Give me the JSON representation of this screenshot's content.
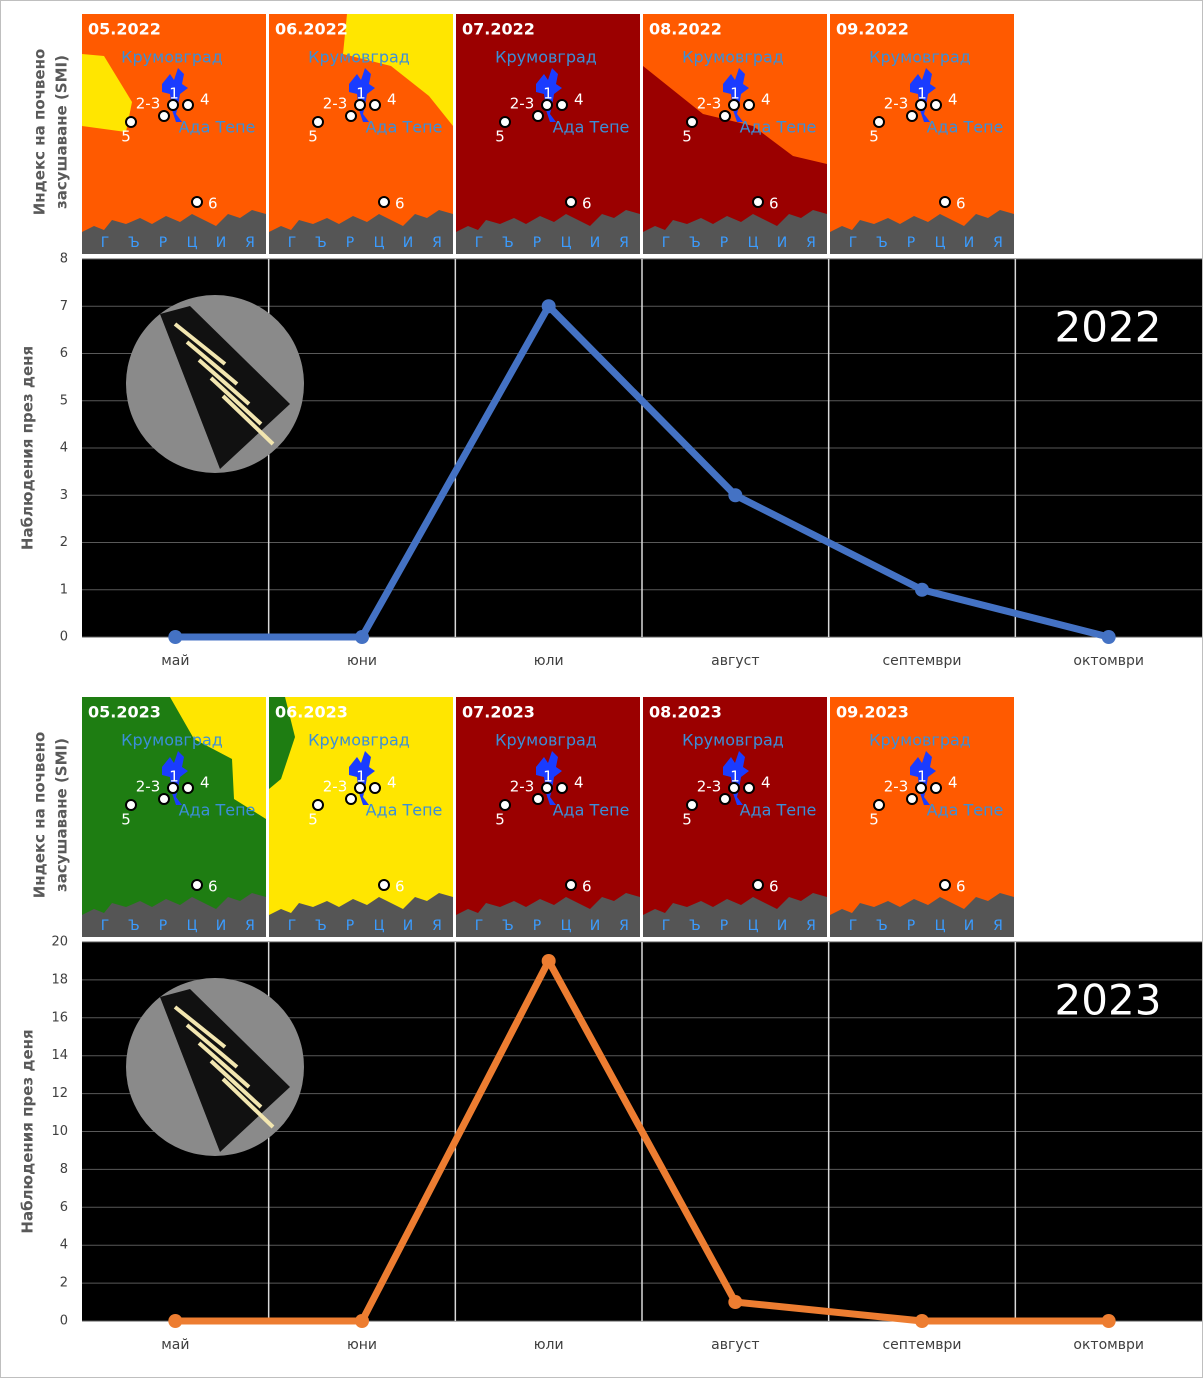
{
  "map_axis_label": [
    "Индекс на почвено",
    "засушаване (SMI)"
  ],
  "map_labels": {
    "towns": [
      "Крумовград",
      "Ада Тепе"
    ],
    "sites": [
      "1",
      "2-3",
      "4",
      "5",
      "6"
    ],
    "scale": [
      "Г",
      "Ъ",
      "Р",
      "Ц",
      "И",
      "Я"
    ]
  },
  "chart_data": [
    {
      "type": "line",
      "annotation": "2022",
      "y_label": "Наблюдения през деня",
      "categories": [
        "май",
        "юни",
        "юли",
        "август",
        "септември",
        "октомври"
      ],
      "series": [
        {
          "color": "#4472c4",
          "values": [
            0,
            0,
            7,
            3,
            1,
            0
          ]
        }
      ],
      "ylim": [
        0,
        8
      ],
      "yticks": [
        0,
        1,
        2,
        3,
        4,
        5,
        6,
        7,
        8
      ],
      "grid": true,
      "maps": [
        {
          "label": "05.2022",
          "colors": [
            "#ff5a00",
            "#ffe600"
          ]
        },
        {
          "label": "06.2022",
          "colors": [
            "#ff5a00",
            "#ffe600"
          ]
        },
        {
          "label": "07.2022",
          "colors": [
            "#9b0000"
          ]
        },
        {
          "label": "08.2022",
          "colors": [
            "#9b0000",
            "#ff5a00"
          ]
        },
        {
          "label": "09.2022",
          "colors": [
            "#ff5a00"
          ]
        }
      ]
    },
    {
      "type": "line",
      "annotation": "2023",
      "y_label": "Наблюдения през деня",
      "categories": [
        "май",
        "юни",
        "юли",
        "август",
        "септември",
        "октомври"
      ],
      "series": [
        {
          "color": "#ed7d31",
          "values": [
            0,
            0,
            19,
            1,
            0,
            0
          ]
        }
      ],
      "ylim": [
        0,
        20
      ],
      "yticks": [
        0,
        2,
        4,
        6,
        8,
        10,
        12,
        14,
        16,
        18,
        20
      ],
      "grid": true,
      "maps": [
        {
          "label": "05.2023",
          "colors": [
            "#1e7d12",
            "#ffe600"
          ]
        },
        {
          "label": "06.2023",
          "colors": [
            "#ffe600",
            "#1e7d12"
          ]
        },
        {
          "label": "07.2023",
          "colors": [
            "#9b0000"
          ]
        },
        {
          "label": "08.2023",
          "colors": [
            "#9b0000"
          ]
        },
        {
          "label": "09.2023",
          "colors": [
            "#ff5a00"
          ]
        }
      ]
    }
  ]
}
